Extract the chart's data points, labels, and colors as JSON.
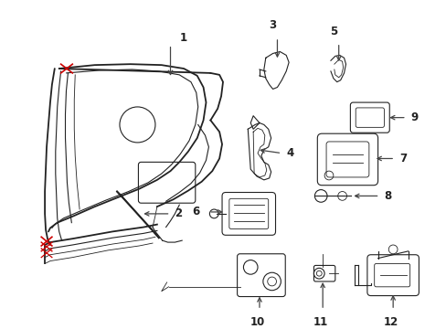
{
  "background_color": "#ffffff",
  "line_color": "#222222",
  "red_color": "#cc0000",
  "arrow_color": "#444444",
  "label_color": "#000000",
  "figsize": [
    4.89,
    3.6
  ],
  "dpi": 100,
  "lw_main": 1.3,
  "lw_inner": 0.8,
  "lw_thin": 0.6
}
